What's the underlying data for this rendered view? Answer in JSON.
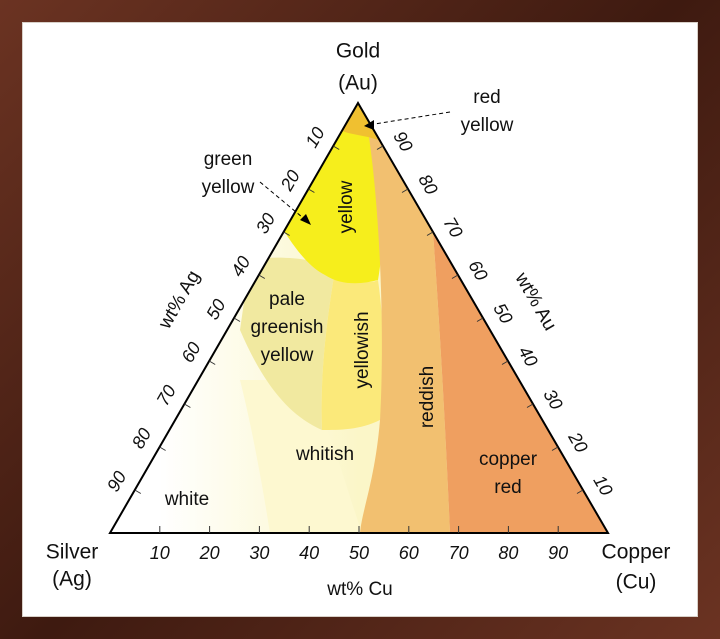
{
  "vertices": [
    {
      "name": "Gold",
      "symbol": "(Au)"
    },
    {
      "name": "Silver",
      "symbol": "(Ag)"
    },
    {
      "name": "Copper",
      "symbol": "(Cu)"
    }
  ],
  "axes": [
    {
      "title": "wt% Cu",
      "ticks": [
        10,
        20,
        30,
        40,
        50,
        60,
        70,
        80,
        90
      ]
    },
    {
      "title": "wt% Ag",
      "ticks": [
        10,
        20,
        30,
        40,
        50,
        60,
        70,
        80,
        90
      ]
    },
    {
      "title": "wt% Au",
      "ticks": [
        90,
        80,
        70,
        60,
        50,
        40,
        30,
        20,
        10
      ]
    }
  ],
  "regions": [
    {
      "lines": [
        "yellow"
      ]
    },
    {
      "lines": [
        "pale",
        "greenish",
        "yellow"
      ]
    },
    {
      "lines": [
        "yellowish"
      ]
    },
    {
      "lines": [
        "reddish"
      ]
    },
    {
      "lines": [
        "whitish"
      ]
    },
    {
      "lines": [
        "white"
      ]
    },
    {
      "lines": [
        "copper",
        "red"
      ]
    },
    {
      "lines": [
        "green",
        "yellow"
      ]
    },
    {
      "lines": [
        "red",
        "yellow"
      ]
    }
  ]
}
